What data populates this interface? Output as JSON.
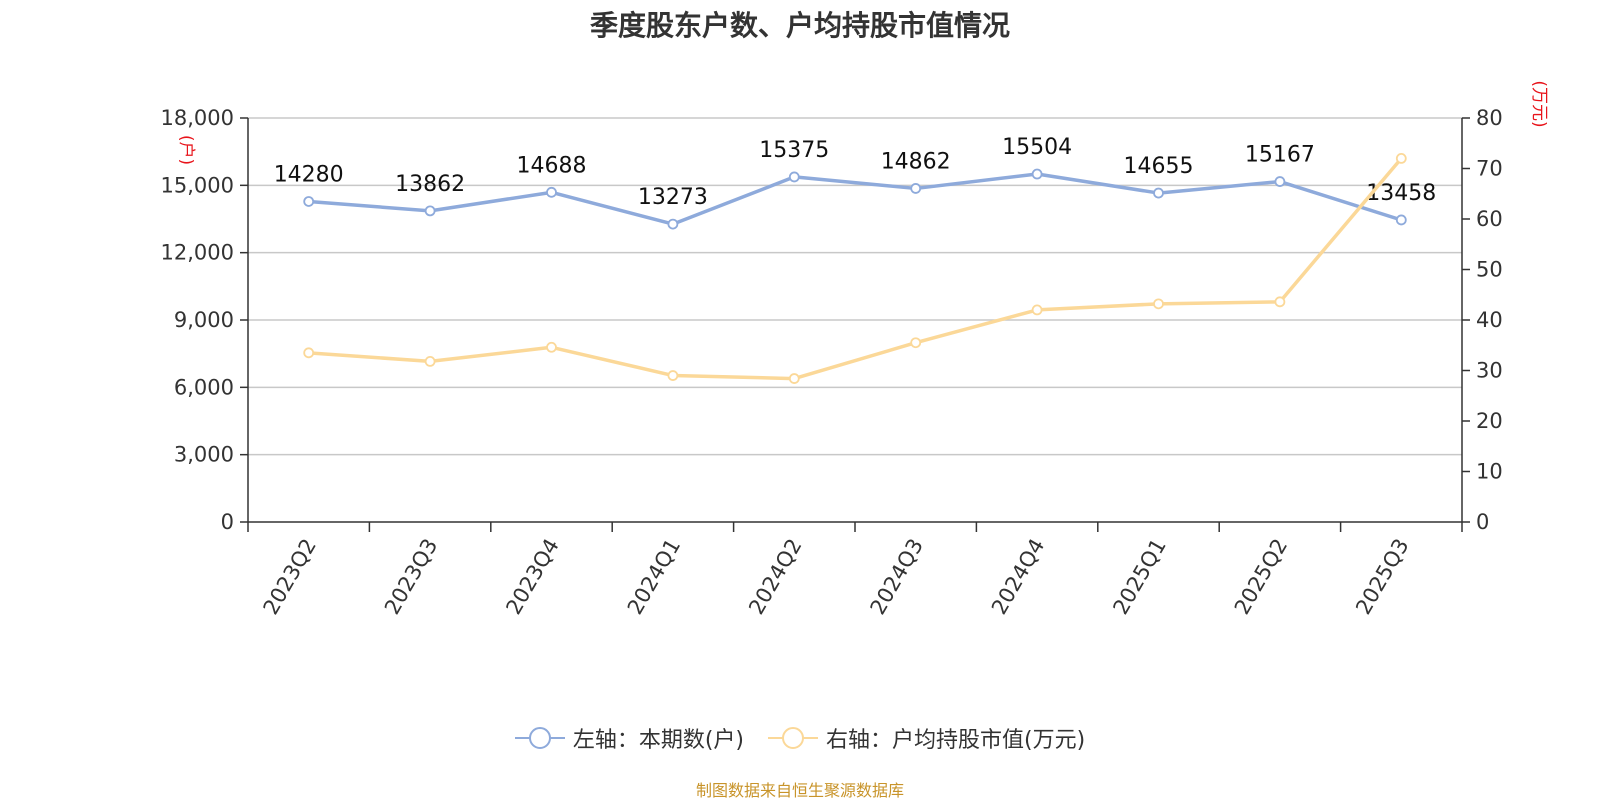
{
  "title": "季度股东户数、户均持股市值情况",
  "source": "制图数据来自恒生聚源数据库",
  "colors": {
    "left_series": "#8eaadb",
    "right_series": "#fbd898",
    "unit": "#e8141b",
    "grid": "#c8c8c8",
    "axis": "#333333"
  },
  "legend": {
    "left": "左轴：本期数(户)",
    "right": "右轴：户均持股市值(万元)"
  },
  "chart_data": {
    "type": "line",
    "title": "季度股东户数、户均持股市值情况",
    "categories": [
      "2023Q2",
      "2023Q3",
      "2023Q4",
      "2024Q1",
      "2024Q2",
      "2024Q3",
      "2024Q4",
      "2025Q1",
      "2025Q2",
      "2025Q3"
    ],
    "y_left": {
      "unit": "(户)",
      "ylim": [
        0,
        18000
      ],
      "ticks": [
        "0",
        "3,000",
        "6,000",
        "9,000",
        "12,000",
        "15,000",
        "18,000"
      ]
    },
    "y_right": {
      "unit": "(万元)",
      "ylim": [
        0,
        80
      ],
      "ticks": [
        "0",
        "10",
        "20",
        "30",
        "40",
        "50",
        "60",
        "70",
        "80"
      ]
    },
    "series": [
      {
        "name": "左轴：本期数(户)",
        "axis": "left",
        "values": [
          14280,
          13862,
          14688,
          13273,
          15375,
          14862,
          15504,
          14655,
          15167,
          13458
        ],
        "labels": [
          "14280",
          "13862",
          "14688",
          "13273",
          "15375",
          "14862",
          "15504",
          "14655",
          "15167",
          "13458"
        ]
      },
      {
        "name": "右轴：户均持股市值(万元)",
        "axis": "right",
        "values": [
          33.5,
          31.8,
          34.6,
          29.0,
          28.4,
          35.5,
          42.0,
          43.2,
          43.6,
          72.0
        ]
      }
    ],
    "grid": true,
    "legend_position": "bottom"
  }
}
